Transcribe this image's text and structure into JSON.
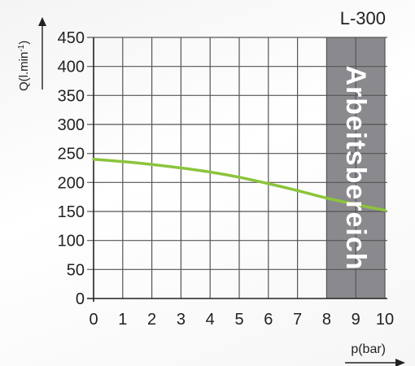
{
  "chart_data": {
    "type": "line",
    "title": "L-300",
    "xlabel": "p(bar)",
    "ylabel": "Q(l.min",
    "ylabel_sup": "-1",
    "ylabel_close": ")",
    "xlim": [
      0,
      10
    ],
    "ylim": [
      0,
      450
    ],
    "x_ticks": [
      "0",
      "1",
      "2",
      "3",
      "4",
      "5",
      "6",
      "7",
      "8",
      "9",
      "10"
    ],
    "y_ticks": [
      "0",
      "50",
      "100",
      "150",
      "200",
      "250",
      "300",
      "350",
      "400",
      "450"
    ],
    "grid": true,
    "series": [
      {
        "color": "#8cc43c",
        "x": [
          0,
          1,
          2,
          3,
          4,
          5,
          6,
          7,
          8,
          9,
          10
        ],
        "y": [
          240,
          236,
          231,
          225,
          218,
          209,
          198,
          186,
          173,
          162,
          152
        ]
      }
    ],
    "shaded_region": {
      "label": "Arbeitsbereich",
      "x_range": [
        8,
        10
      ],
      "color": "#8a8a8e"
    }
  }
}
